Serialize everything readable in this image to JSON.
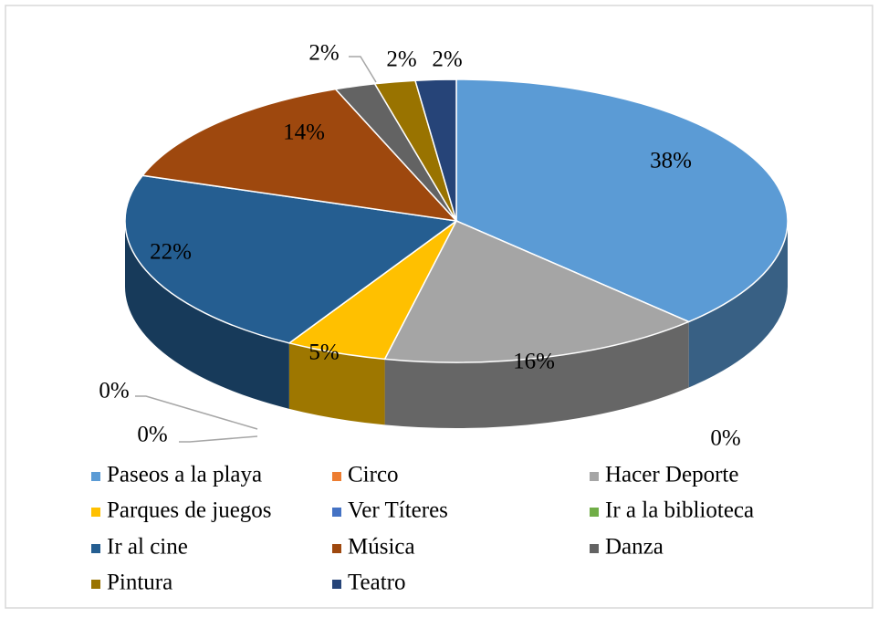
{
  "chart_data": {
    "type": "pie3d",
    "categories": [
      "Paseos a la playa",
      "Circo",
      "Hacer Deporte",
      "Parques de juegos",
      "Ver Títeres",
      "Ir a la biblioteca",
      "Ir al cine",
      "Música",
      "Danza",
      "Pintura",
      "Teatro"
    ],
    "values": [
      38,
      0,
      16,
      5,
      0,
      0,
      22,
      14,
      2,
      2,
      2
    ],
    "value_labels": [
      "38%",
      "0%",
      "16%",
      "5%",
      "0%",
      "0%",
      "22%",
      "14%",
      "2%",
      "2%",
      "2%"
    ],
    "colors": [
      "#5b9bd5",
      "#ed7d31",
      "#a5a5a5",
      "#ffc000",
      "#4472c4",
      "#70ad47",
      "#255e91",
      "#9e480e",
      "#636363",
      "#997300",
      "#264478"
    ],
    "legend": "bottom"
  }
}
